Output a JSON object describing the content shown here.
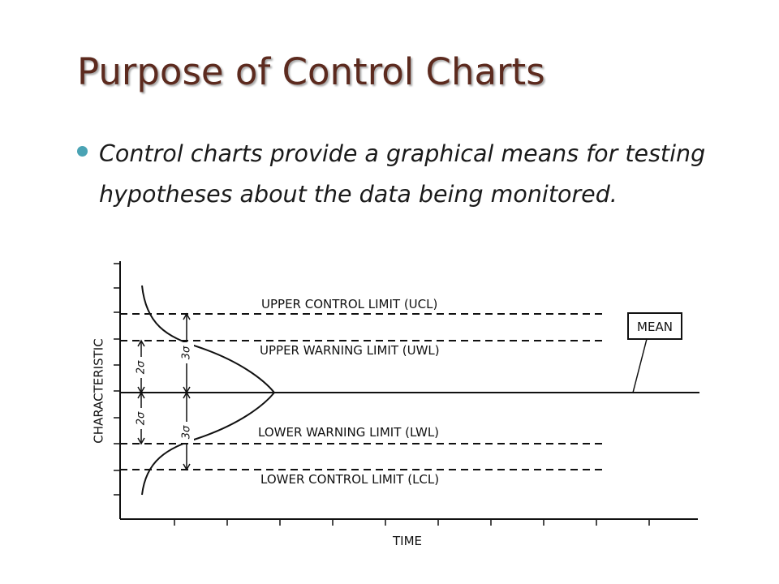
{
  "slide": {
    "title": "Purpose of Control Charts",
    "bullet": "Control charts provide a graphical means for testing hypotheses about the data being monitored."
  },
  "colors": {
    "title": "#5c2a1e",
    "bullet_marker": "#4aa3b4",
    "body_text": "#1a1a1a",
    "diagram_ink": "#111111"
  },
  "diagram": {
    "y_axis_label": "CHARACTERISTIC",
    "x_axis_label": "TIME",
    "lines": {
      "ucl": "UPPER CONTROL LIMIT (UCL)",
      "uwl": "UPPER WARNING LIMIT (UWL)",
      "lwl": "LOWER WARNING LIMIT (LWL)",
      "lcl": "LOWER CONTROL LIMIT (LCL)"
    },
    "mean_box": "MEAN",
    "sigma_marks": {
      "two_sigma": "2σ",
      "three_sigma": "3σ"
    }
  }
}
